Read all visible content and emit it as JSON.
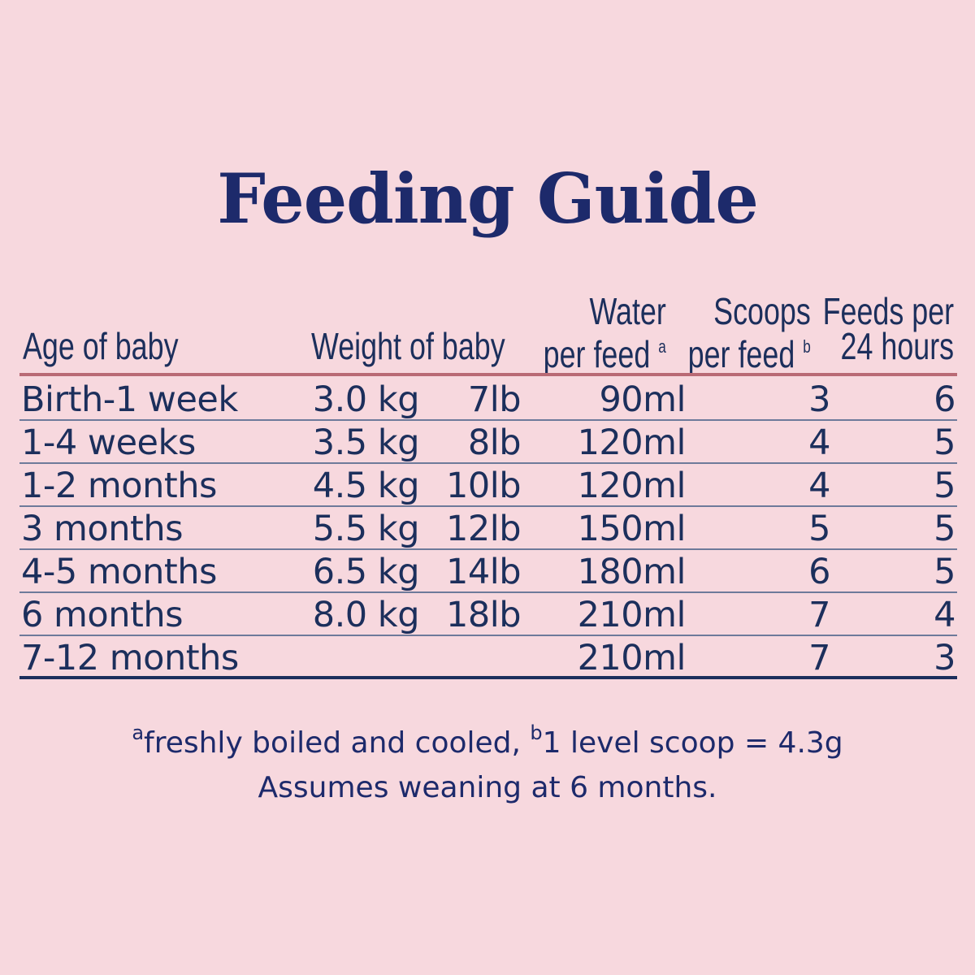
{
  "title": "Feeding Guide",
  "headers": {
    "age": "Age of baby",
    "weight": "Weight of baby",
    "water_line1": "Water",
    "water_line2": "per feed",
    "water_note": "a",
    "scoops_line1": "Scoops",
    "scoops_line2": "per feed",
    "scoops_note": "b",
    "feeds_line1": "Feeds per",
    "feeds_line2": "24 hours"
  },
  "rows": [
    {
      "age": "Birth-1 week",
      "kg": "3.0 kg",
      "lb": "7lb",
      "water": "90ml",
      "scoops": "3",
      "feeds": "6"
    },
    {
      "age": "1-4 weeks",
      "kg": "3.5 kg",
      "lb": "8lb",
      "water": "120ml",
      "scoops": "4",
      "feeds": "5"
    },
    {
      "age": "1-2 months",
      "kg": "4.5 kg",
      "lb": "10lb",
      "water": "120ml",
      "scoops": "4",
      "feeds": "5"
    },
    {
      "age": "3 months",
      "kg": "5.5 kg",
      "lb": "12lb",
      "water": "150ml",
      "scoops": "5",
      "feeds": "5"
    },
    {
      "age": "4-5 months",
      "kg": "6.5 kg",
      "lb": "14lb",
      "water": "180ml",
      "scoops": "6",
      "feeds": "5"
    },
    {
      "age": "6 months",
      "kg": "8.0 kg",
      "lb": "18lb",
      "water": "210ml",
      "scoops": "7",
      "feeds": "4"
    },
    {
      "age": "7-12 months",
      "kg": "",
      "lb": "",
      "water": "210ml",
      "scoops": "7",
      "feeds": "3"
    }
  ],
  "footnotes": {
    "a_mark": "a",
    "a_text": "freshly boiled and cooled, ",
    "b_mark": "b",
    "b_text": "1 level scoop = 4.3g",
    "line2": "Assumes weaning at 6 months."
  },
  "colors": {
    "background": "#f7d8de",
    "text": "#1c2f5c",
    "header_rule": "#b96a75"
  }
}
